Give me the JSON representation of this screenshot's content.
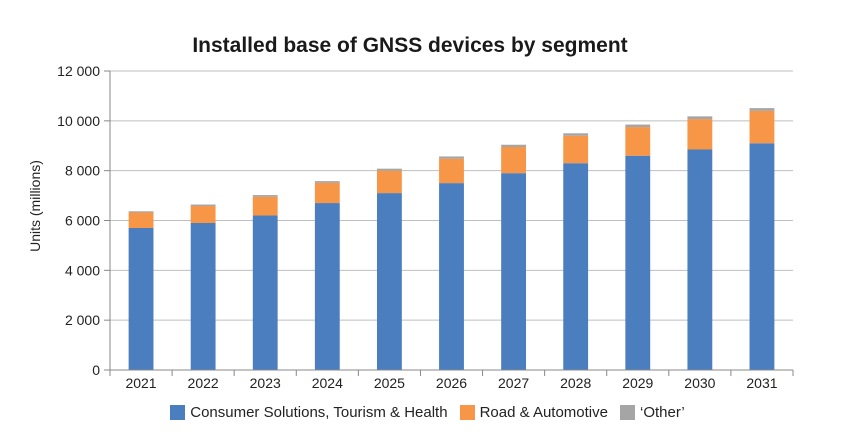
{
  "chart_data": {
    "type": "bar",
    "stacked": true,
    "title": "Installed base of GNSS devices by segment",
    "xlabel": "",
    "ylabel": "Units (millions)",
    "ylim": [
      0,
      12000
    ],
    "yticks": [
      0,
      2000,
      4000,
      6000,
      8000,
      10000,
      12000
    ],
    "ytick_labels": [
      "0",
      "2 000",
      "4 000",
      "6 000",
      "8 000",
      "10 000",
      "12 000"
    ],
    "grid": true,
    "legend_position": "bottom",
    "categories": [
      "2021",
      "2022",
      "2023",
      "2024",
      "2025",
      "2026",
      "2027",
      "2028",
      "2029",
      "2030",
      "2031"
    ],
    "series": [
      {
        "name": "Consumer Solutions, Tourism & Health",
        "color": "#4a7ebf",
        "values": [
          5700,
          5900,
          6200,
          6700,
          7100,
          7500,
          7900,
          8300,
          8600,
          8850,
          9100
        ]
      },
      {
        "name": "Road & Automotive",
        "color": "#f79646",
        "values": [
          620,
          680,
          750,
          810,
          900,
          980,
          1050,
          1100,
          1150,
          1220,
          1300
        ]
      },
      {
        "name": "‘Other’",
        "color": "#a5a5a5",
        "values": [
          50,
          60,
          70,
          70,
          80,
          90,
          90,
          100,
          100,
          110,
          110
        ]
      }
    ]
  }
}
